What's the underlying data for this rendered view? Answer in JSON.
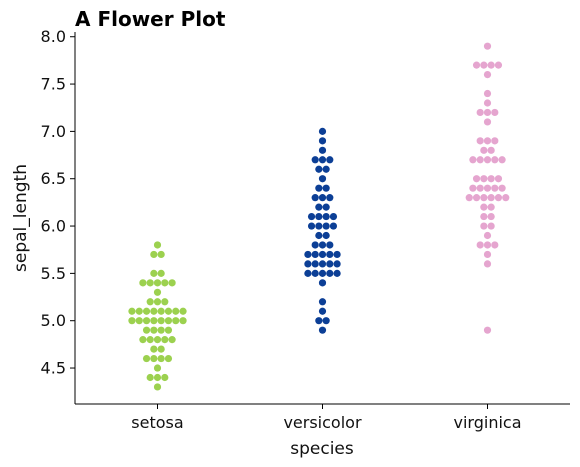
{
  "chart_data": {
    "type": "scatter",
    "subtype": "swarm",
    "title": "A Flower Plot",
    "xlabel": "species",
    "ylabel": "sepal_length",
    "categories": [
      "setosa",
      "versicolor",
      "virginica"
    ],
    "ylim": [
      4.12,
      8.05
    ],
    "yticks": [
      4.5,
      5.0,
      5.5,
      6.0,
      6.5,
      7.0,
      7.5,
      8.0
    ],
    "ytick_labels": [
      "4.5",
      "5.0",
      "5.5",
      "6.0",
      "6.5",
      "7.0",
      "7.5",
      "8.0"
    ],
    "grid": false,
    "legend": "none",
    "series": [
      {
        "category": "setosa",
        "color": "#9cd14f",
        "values": [
          5.1,
          4.9,
          4.7,
          4.6,
          5.0,
          5.4,
          4.6,
          5.0,
          4.4,
          4.9,
          5.4,
          4.8,
          4.8,
          4.3,
          5.8,
          5.7,
          5.4,
          5.1,
          5.7,
          5.1,
          5.4,
          5.1,
          4.6,
          5.1,
          4.8,
          5.0,
          5.0,
          5.2,
          5.2,
          4.7,
          4.8,
          5.4,
          5.2,
          5.5,
          4.9,
          5.0,
          5.5,
          4.9,
          4.4,
          5.1,
          5.0,
          4.5,
          4.4,
          5.0,
          5.1,
          4.8,
          5.1,
          4.6,
          5.3,
          5.0
        ]
      },
      {
        "category": "versicolor",
        "color": "#0c3f96",
        "values": [
          7.0,
          6.4,
          6.9,
          5.5,
          6.5,
          5.7,
          6.3,
          4.9,
          6.6,
          5.2,
          5.0,
          5.9,
          6.0,
          6.1,
          5.6,
          6.7,
          5.6,
          5.8,
          6.2,
          5.6,
          5.9,
          6.1,
          6.3,
          6.1,
          6.4,
          6.6,
          6.8,
          6.7,
          6.0,
          5.7,
          5.5,
          5.5,
          5.8,
          6.0,
          5.4,
          6.0,
          6.7,
          6.3,
          5.6,
          5.5,
          5.5,
          6.1,
          5.8,
          5.0,
          5.6,
          5.7,
          5.7,
          6.2,
          5.1,
          5.7
        ]
      },
      {
        "category": "virginica",
        "color": "#e5a5cf",
        "values": [
          6.3,
          5.8,
          7.1,
          6.3,
          6.5,
          7.6,
          4.9,
          7.3,
          6.7,
          7.2,
          6.5,
          6.4,
          6.8,
          5.7,
          5.8,
          6.4,
          6.5,
          7.7,
          7.7,
          6.0,
          6.9,
          5.6,
          7.7,
          6.3,
          6.7,
          7.2,
          6.2,
          6.1,
          6.4,
          7.2,
          7.4,
          7.9,
          6.4,
          6.3,
          6.1,
          7.7,
          6.3,
          6.4,
          6.0,
          6.9,
          6.7,
          6.9,
          5.8,
          6.8,
          6.7,
          6.7,
          6.3,
          6.5,
          6.2,
          5.9
        ]
      }
    ]
  }
}
